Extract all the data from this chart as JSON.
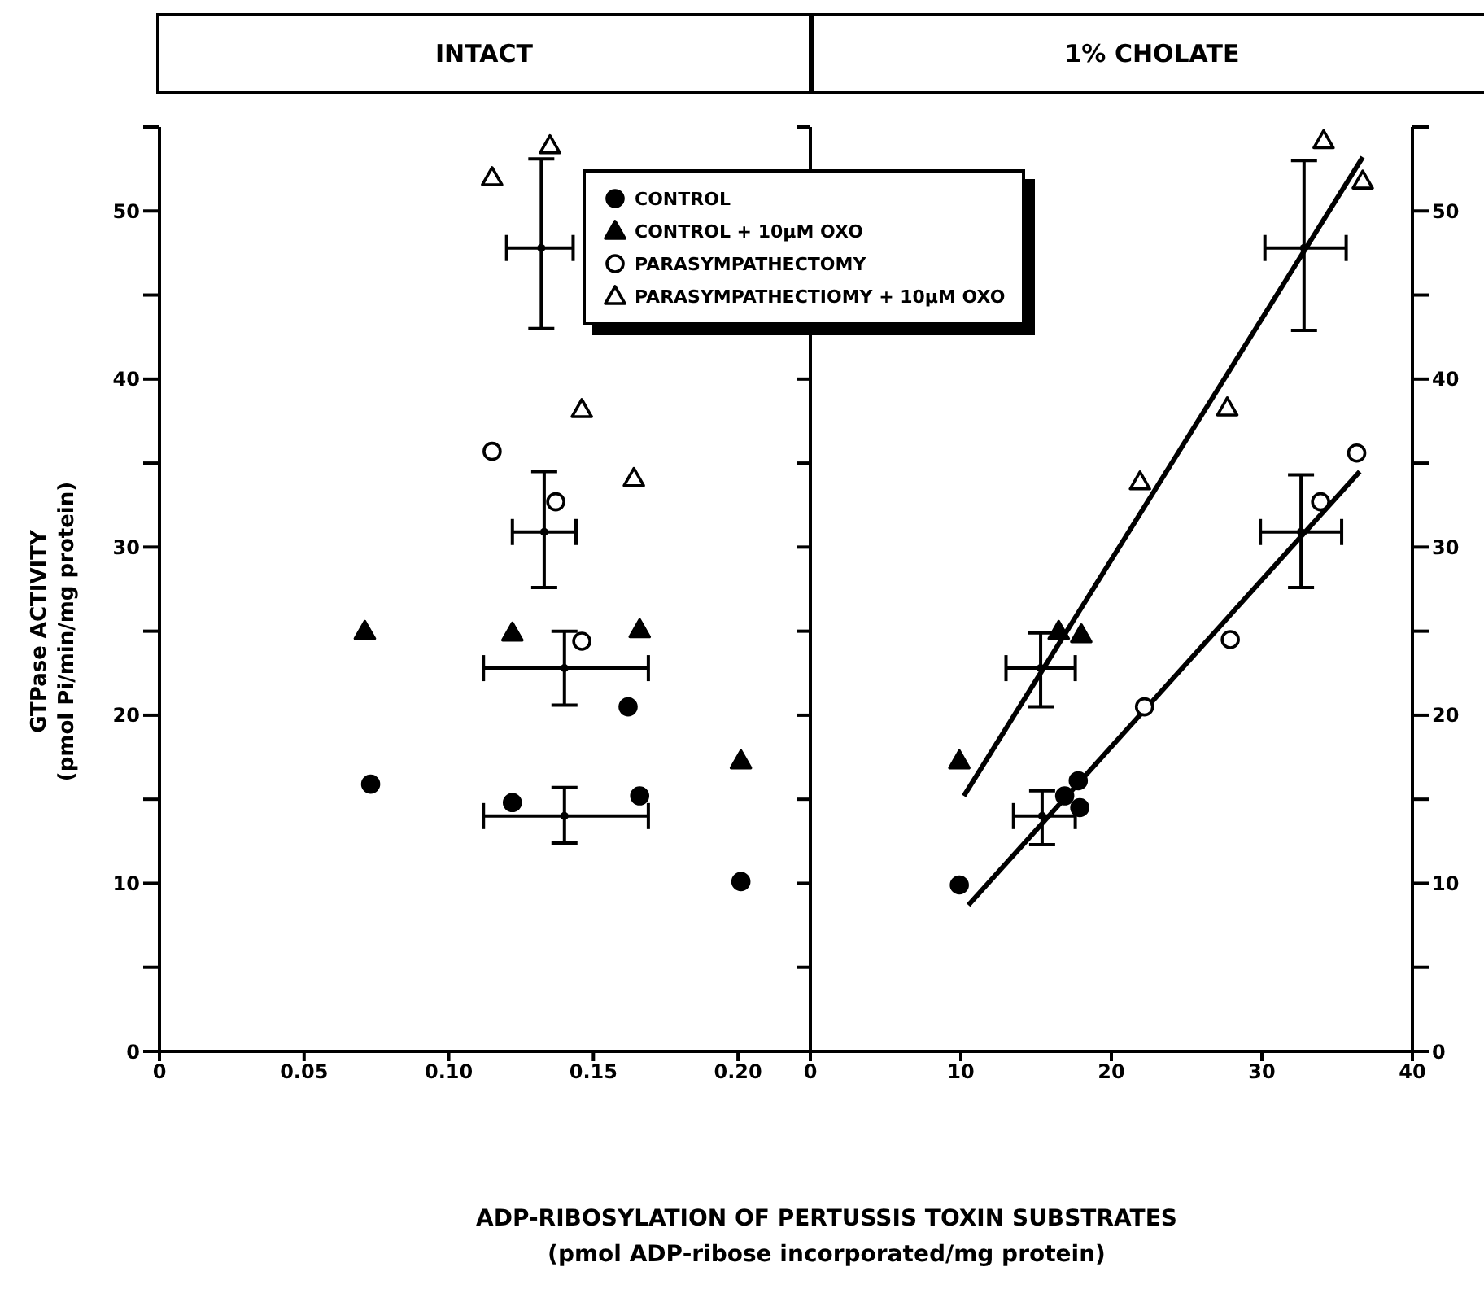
{
  "chart_data": [
    {
      "type": "scatter",
      "title": "INTACT",
      "xlabel": "ADP-RIBOSYLATION OF PERTUSSIS TOXIN SUBSTRATES\n(pmol ADP-ribose incorporated/mg protein)",
      "ylabel": "GTPase ACTIVITY\n(pmol Pi/min/mg protein)",
      "xlim": [
        0,
        0.225
      ],
      "xticks": [
        0,
        0.05,
        {
          "value": 0.1,
          "label": "0.10"
        },
        0.15,
        {
          "value": 0.2,
          "label": "0.20"
        }
      ],
      "ylim": [
        0,
        55
      ],
      "yticks": [
        0,
        {
          "value": 5,
          "label": null
        },
        10,
        {
          "value": 15,
          "label": null
        },
        20,
        {
          "value": 25,
          "label": null
        },
        30,
        {
          "value": 35,
          "label": null
        },
        40,
        {
          "value": 45,
          "label": null
        },
        50,
        {
          "value": 55,
          "label": null
        }
      ],
      "legend": "top right",
      "series": [
        {
          "name": "CONTROL",
          "color": "#000000",
          "marker": "circle",
          "x": [
            0.073,
            0.122,
            0.162,
            0.166,
            0.201
          ],
          "values": [
            15.9,
            14.8,
            20.5,
            15.2,
            10.1
          ]
        },
        {
          "name": "CONTROL + 10μM OXO",
          "color": "#000000",
          "marker": "triangle",
          "x": [
            0.071,
            0.122,
            0.166,
            0.201
          ],
          "values": [
            25.0,
            24.9,
            25.1,
            17.3
          ]
        },
        {
          "name": "PARASYMPATHECTOMY",
          "color": "#ffffff",
          "marker": "circle",
          "x": [
            0.115,
            0.137,
            0.146
          ],
          "values": [
            35.7,
            32.7,
            24.4
          ]
        },
        {
          "name": "PARASYMPATHECTIOMY + 10μM OXO",
          "color": "#ffffff",
          "marker": "triangle",
          "x": [
            0.115,
            0.135,
            0.146,
            0.164
          ],
          "values": [
            52.0,
            53.9,
            38.2,
            34.1
          ]
        },
        {
          "color": "#000000",
          "marker": "circle",
          "x": [
            0.14,
            0.14,
            0.133,
            0.132
          ],
          "values": [
            14.0,
            22.8,
            30.9,
            47.8
          ],
          "errors": [
            [
              12.4,
              15.7
            ],
            [
              20.6,
              25.0
            ],
            [
              27.6,
              34.5
            ],
            [
              43.0,
              53.1
            ]
          ],
          "xerrors": [
            [
              0.112,
              0.169
            ],
            [
              0.112,
              0.169
            ],
            [
              0.122,
              0.144
            ],
            [
              0.12,
              0.143
            ]
          ]
        }
      ]
    },
    {
      "type": "scatter",
      "title": "1% CHOLATE",
      "xlim": [
        0,
        40
      ],
      "xticks": [
        0,
        10,
        20,
        30,
        40
      ],
      "ylim": [
        0,
        55
      ],
      "yticks": [
        0,
        {
          "value": 5,
          "label": null
        },
        10,
        {
          "value": 15,
          "label": null
        },
        20,
        {
          "value": 25,
          "label": null
        },
        30,
        {
          "value": 35,
          "label": null
        },
        40,
        {
          "value": 45,
          "label": null
        },
        50,
        {
          "value": 55,
          "label": null
        }
      ],
      "series": [
        {
          "color": "#000000",
          "marker": "circle",
          "x": [
            9.9,
            16.9,
            17.8,
            17.9
          ],
          "values": [
            9.9,
            15.2,
            16.1,
            14.5
          ]
        },
        {
          "color": "#000000",
          "marker": "triangle",
          "x": [
            9.9,
            16.5,
            18.0
          ],
          "values": [
            17.3,
            25.0,
            24.8
          ]
        },
        {
          "color": "#ffffff",
          "marker": "circle",
          "x": [
            22.2,
            27.9,
            33.9,
            36.3
          ],
          "values": [
            20.5,
            24.5,
            32.7,
            35.6
          ]
        },
        {
          "color": "#ffffff",
          "marker": "triangle",
          "x": [
            21.9,
            27.7,
            34.1,
            36.7
          ],
          "values": [
            33.9,
            38.3,
            54.2,
            51.8
          ]
        },
        {
          "color": "#000000",
          "marker": "circle",
          "x": [
            15.4,
            15.3,
            32.6,
            32.8
          ],
          "values": [
            14.0,
            22.8,
            30.9,
            47.8
          ],
          "errors": [
            [
              12.3,
              15.5
            ],
            [
              20.5,
              24.9
            ],
            [
              27.6,
              34.3
            ],
            [
              42.9,
              53.0
            ]
          ],
          "xerrors": [
            [
              13.5,
              17.6
            ],
            [
              13.0,
              17.6
            ],
            [
              29.9,
              35.3
            ],
            [
              30.2,
              35.6
            ]
          ]
        },
        {
          "type": "line",
          "color": "#000000",
          "x": [
            10.2,
            36.7
          ],
          "values": [
            15.2,
            53.2
          ]
        },
        {
          "type": "line",
          "color": "#000000",
          "x": [
            10.5,
            36.5
          ],
          "values": [
            8.7,
            34.5
          ]
        }
      ]
    }
  ]
}
